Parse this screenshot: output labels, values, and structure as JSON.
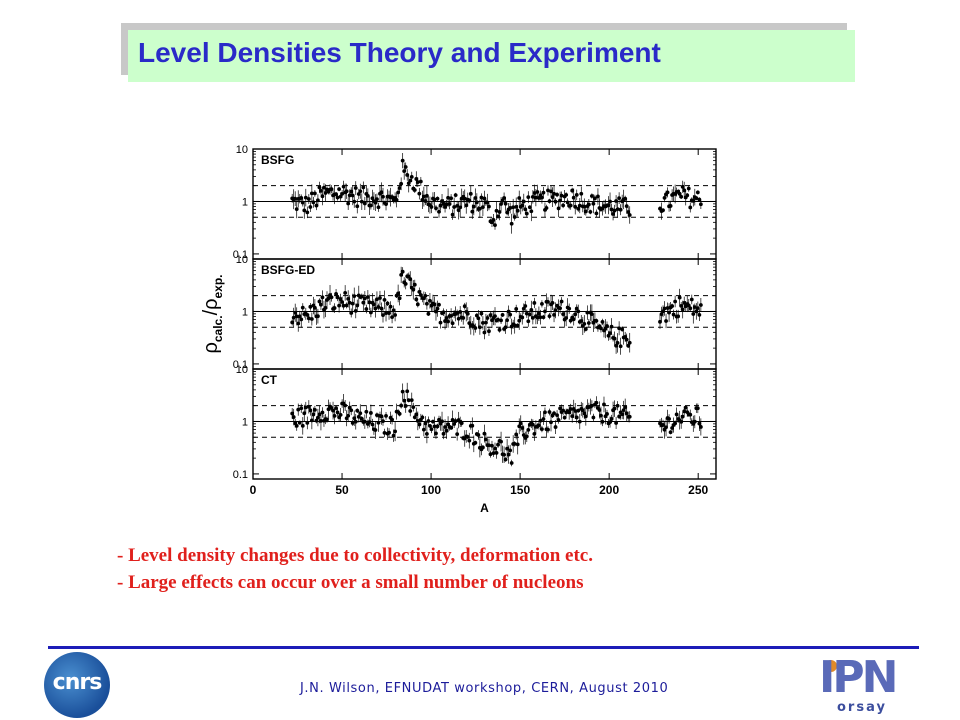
{
  "slide": {
    "title": "Level Densities Theory and Experiment",
    "bullets": [
      "- Level density changes due to collectivity, deformation etc.",
      "- Large effects can occur over a small number of nucleons"
    ],
    "footer": "J.N. Wilson,  EFNUDAT workshop, CERN, August 2010",
    "logos": {
      "left": "cnrs",
      "right": "IPN",
      "right_sub": "orsay"
    }
  },
  "colors": {
    "title_text": "#2a2ac8",
    "title_bg": "#ccffcc",
    "bullet_text": "#e0201c",
    "footer_rule": "#1c1cb8"
  },
  "chart_data": {
    "type": "scatter",
    "xlabel": "A",
    "ylabel_main": "ρ",
    "ylabel_sub": "calc.",
    "ylabel_denom_main": "ρ",
    "ylabel_denom_sub": "exp.",
    "xlim": [
      0,
      260
    ],
    "xticks": [
      0,
      50,
      100,
      150,
      200,
      250
    ],
    "yscale": "log",
    "ylim": [
      0.08,
      10
    ],
    "yticks": [
      0.1,
      1,
      10
    ],
    "ytick_labels": [
      "0.1",
      "1",
      "10"
    ],
    "reference_lines": {
      "solid": 1,
      "dashed": [
        0.5,
        2
      ]
    },
    "panels": [
      {
        "label": "BSFG",
        "anchors": [
          [
            22,
            1.0
          ],
          [
            30,
            0.85
          ],
          [
            40,
            1.4
          ],
          [
            50,
            1.5
          ],
          [
            60,
            1.2
          ],
          [
            70,
            1.2
          ],
          [
            80,
            1.0
          ],
          [
            84,
            4.0
          ],
          [
            90,
            2.5
          ],
          [
            100,
            0.95
          ],
          [
            110,
            0.8
          ],
          [
            120,
            1.0
          ],
          [
            130,
            0.9
          ],
          [
            135,
            0.45
          ],
          [
            140,
            1.0
          ],
          [
            145,
            0.55
          ],
          [
            150,
            0.8
          ],
          [
            160,
            1.0
          ],
          [
            170,
            1.1
          ],
          [
            180,
            1.2
          ],
          [
            190,
            0.9
          ],
          [
            200,
            0.8
          ],
          [
            210,
            0.75
          ],
          [
            230,
            0.9
          ],
          [
            240,
            1.3
          ],
          [
            250,
            1.1
          ]
        ]
      },
      {
        "label": "BSFG-ED",
        "anchors": [
          [
            22,
            0.9
          ],
          [
            30,
            0.8
          ],
          [
            40,
            1.4
          ],
          [
            50,
            1.6
          ],
          [
            60,
            1.3
          ],
          [
            70,
            1.2
          ],
          [
            80,
            1.1
          ],
          [
            84,
            4.5
          ],
          [
            90,
            2.5
          ],
          [
            100,
            1.0
          ],
          [
            110,
            0.9
          ],
          [
            120,
            0.9
          ],
          [
            130,
            0.6
          ],
          [
            140,
            0.7
          ],
          [
            150,
            0.8
          ],
          [
            160,
            1.0
          ],
          [
            170,
            1.1
          ],
          [
            180,
            1.0
          ],
          [
            190,
            0.6
          ],
          [
            200,
            0.35
          ],
          [
            210,
            0.3
          ],
          [
            230,
            0.9
          ],
          [
            240,
            1.3
          ],
          [
            250,
            1.1
          ]
        ]
      },
      {
        "label": "CT",
        "anchors": [
          [
            22,
            1.1
          ],
          [
            30,
            1.3
          ],
          [
            40,
            1.6
          ],
          [
            50,
            1.5
          ],
          [
            60,
            1.1
          ],
          [
            70,
            0.9
          ],
          [
            80,
            0.8
          ],
          [
            84,
            4.0
          ],
          [
            90,
            1.5
          ],
          [
            100,
            0.7
          ],
          [
            110,
            0.8
          ],
          [
            120,
            0.7
          ],
          [
            130,
            0.4
          ],
          [
            140,
            0.3
          ],
          [
            145,
            0.2
          ],
          [
            150,
            0.6
          ],
          [
            160,
            0.9
          ],
          [
            170,
            1.1
          ],
          [
            180,
            1.3
          ],
          [
            190,
            1.5
          ],
          [
            200,
            1.4
          ],
          [
            210,
            1.2
          ],
          [
            230,
            0.8
          ],
          [
            240,
            1.2
          ],
          [
            250,
            1.2
          ]
        ]
      }
    ],
    "gaps": [
      [
        212,
        228
      ]
    ]
  }
}
